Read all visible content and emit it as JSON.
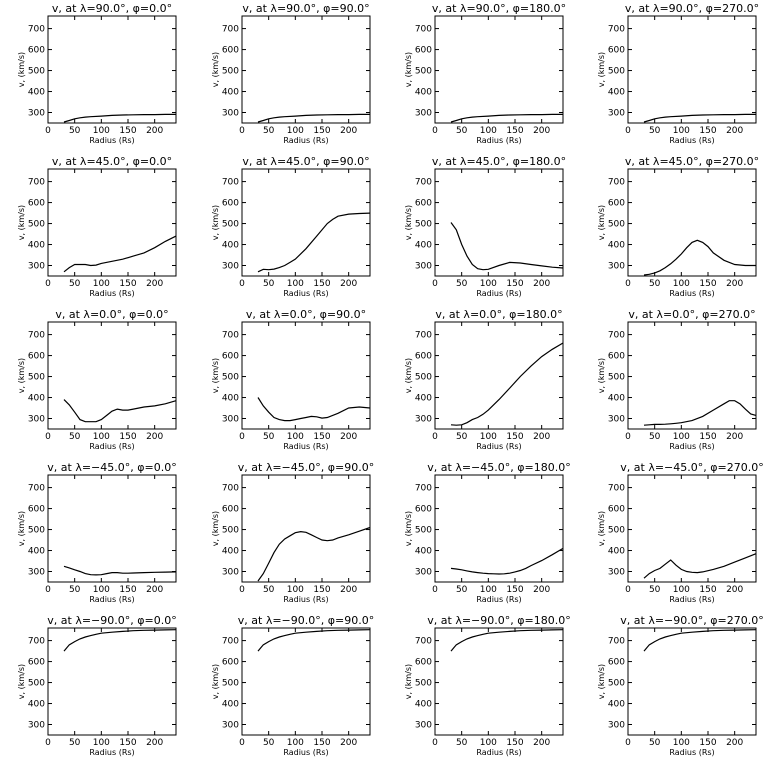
{
  "chart_data": {
    "type": "line",
    "layout": "5x4 grid of line plots",
    "xlabel": "Radius (Rs)",
    "ylabel": "v, (km/s)",
    "xlim": [
      0,
      240
    ],
    "ylim": [
      250,
      760
    ],
    "xticks": [
      0,
      50,
      100,
      150,
      200
    ],
    "yticks": [
      300,
      400,
      500,
      600,
      700
    ],
    "panels": [
      {
        "title": "v, at λ=90.0°, φ=0.0°",
        "x": [
          30,
          40,
          50,
          60,
          70,
          80,
          100,
          120,
          140,
          160,
          180,
          200,
          220,
          240
        ],
        "y": [
          255,
          262,
          270,
          275,
          278,
          280,
          283,
          286,
          288,
          289,
          290,
          290,
          291,
          291
        ]
      },
      {
        "title": "v, at λ=90.0°, φ=90.0°",
        "x": [
          30,
          40,
          50,
          60,
          70,
          80,
          100,
          120,
          140,
          160,
          180,
          200,
          220,
          240
        ],
        "y": [
          255,
          262,
          270,
          275,
          278,
          280,
          283,
          286,
          288,
          289,
          290,
          290,
          291,
          291
        ]
      },
      {
        "title": "v, at λ=90.0°, φ=180.0°",
        "x": [
          30,
          40,
          50,
          60,
          70,
          80,
          100,
          120,
          140,
          160,
          180,
          200,
          220,
          240
        ],
        "y": [
          255,
          262,
          270,
          275,
          278,
          280,
          283,
          286,
          288,
          289,
          290,
          290,
          291,
          291
        ]
      },
      {
        "title": "v, at λ=90.0°, φ=270.0°",
        "x": [
          30,
          40,
          50,
          60,
          70,
          80,
          100,
          120,
          140,
          160,
          180,
          200,
          220,
          240
        ],
        "y": [
          255,
          262,
          270,
          275,
          278,
          280,
          283,
          286,
          288,
          289,
          290,
          290,
          291,
          291
        ]
      },
      {
        "title": "v, at λ=45.0°, φ=0.0°",
        "x": [
          30,
          40,
          50,
          60,
          70,
          80,
          90,
          100,
          120,
          140,
          160,
          180,
          200,
          220,
          240
        ],
        "y": [
          270,
          290,
          305,
          305,
          305,
          300,
          302,
          310,
          320,
          330,
          345,
          360,
          385,
          415,
          440
        ]
      },
      {
        "title": "v, at λ=45.0°, φ=90.0°",
        "x": [
          30,
          40,
          50,
          60,
          70,
          80,
          90,
          100,
          120,
          140,
          160,
          170,
          180,
          200,
          220,
          240
        ],
        "y": [
          270,
          282,
          280,
          283,
          290,
          300,
          315,
          330,
          380,
          440,
          500,
          520,
          535,
          545,
          548,
          550
        ]
      },
      {
        "title": "v, at λ=45.0°, φ=180.0°",
        "x": [
          30,
          40,
          50,
          60,
          70,
          80,
          90,
          100,
          120,
          140,
          160,
          180,
          200,
          220,
          240
        ],
        "y": [
          505,
          470,
          400,
          345,
          305,
          285,
          280,
          282,
          300,
          315,
          312,
          305,
          298,
          292,
          288
        ]
      },
      {
        "title": "v, at λ=45.0°, φ=270.0°",
        "x": [
          30,
          40,
          50,
          60,
          70,
          80,
          90,
          100,
          110,
          120,
          130,
          140,
          150,
          160,
          180,
          200,
          220,
          240
        ],
        "y": [
          255,
          258,
          265,
          275,
          290,
          308,
          330,
          355,
          385,
          410,
          420,
          410,
          390,
          360,
          325,
          305,
          300,
          300
        ]
      },
      {
        "title": "v, at λ=0.0°, φ=0.0°",
        "x": [
          30,
          40,
          50,
          60,
          70,
          80,
          90,
          100,
          110,
          120,
          130,
          140,
          150,
          160,
          180,
          200,
          220,
          240
        ],
        "y": [
          390,
          365,
          330,
          295,
          285,
          285,
          285,
          295,
          315,
          335,
          345,
          340,
          340,
          345,
          355,
          360,
          370,
          385
        ]
      },
      {
        "title": "v, at λ=0.0°, φ=90.0°",
        "x": [
          30,
          40,
          50,
          60,
          70,
          80,
          90,
          100,
          110,
          120,
          130,
          140,
          150,
          160,
          180,
          200,
          220,
          240
        ],
        "y": [
          400,
          360,
          330,
          305,
          295,
          290,
          290,
          295,
          300,
          305,
          310,
          308,
          302,
          305,
          325,
          350,
          355,
          350
        ]
      },
      {
        "title": "v, at λ=0.0°, φ=180.0°",
        "x": [
          30,
          40,
          50,
          60,
          70,
          80,
          90,
          100,
          120,
          140,
          160,
          180,
          200,
          220,
          240
        ],
        "y": [
          270,
          268,
          270,
          280,
          295,
          305,
          320,
          340,
          390,
          445,
          500,
          550,
          595,
          630,
          660
        ]
      },
      {
        "title": "v, at λ=0.0°, φ=270.0°",
        "x": [
          30,
          40,
          50,
          60,
          70,
          80,
          90,
          100,
          120,
          140,
          160,
          180,
          190,
          200,
          210,
          220,
          230,
          240
        ],
        "y": [
          268,
          270,
          272,
          272,
          273,
          275,
          277,
          280,
          290,
          310,
          340,
          370,
          385,
          385,
          370,
          345,
          322,
          315
        ]
      },
      {
        "title": "v, at λ=−45.0°, φ=0.0°",
        "x": [
          30,
          40,
          50,
          60,
          70,
          80,
          90,
          100,
          110,
          120,
          130,
          140,
          150,
          160,
          180,
          200,
          220,
          240
        ],
        "y": [
          325,
          317,
          308,
          300,
          290,
          285,
          284,
          285,
          290,
          295,
          295,
          292,
          292,
          293,
          295,
          296,
          297,
          298
        ]
      },
      {
        "title": "v, at λ=−45.0°, φ=90.0°",
        "x": [
          30,
          40,
          50,
          60,
          70,
          80,
          90,
          100,
          110,
          120,
          130,
          140,
          150,
          160,
          170,
          180,
          200,
          220,
          240
        ],
        "y": [
          255,
          290,
          340,
          390,
          430,
          455,
          470,
          485,
          490,
          487,
          475,
          462,
          450,
          447,
          450,
          460,
          475,
          492,
          510
        ]
      },
      {
        "title": "v, at λ=−45.0°, φ=180.0°",
        "x": [
          30,
          40,
          50,
          60,
          70,
          80,
          90,
          100,
          110,
          120,
          130,
          140,
          150,
          160,
          170,
          180,
          200,
          220,
          240
        ],
        "y": [
          315,
          312,
          308,
          303,
          298,
          295,
          292,
          290,
          289,
          288,
          289,
          292,
          298,
          305,
          315,
          328,
          352,
          380,
          410
        ]
      },
      {
        "title": "v, at λ=−45.0°, φ=270.0°",
        "x": [
          30,
          40,
          50,
          60,
          70,
          80,
          90,
          100,
          110,
          120,
          130,
          140,
          160,
          180,
          200,
          220,
          240
        ],
        "y": [
          268,
          290,
          305,
          315,
          335,
          355,
          330,
          310,
          300,
          296,
          295,
          298,
          310,
          325,
          345,
          365,
          385
        ]
      },
      {
        "title": "v, at λ=−90.0°, φ=0.0°",
        "x": [
          30,
          35,
          40,
          50,
          60,
          70,
          80,
          90,
          100,
          120,
          140,
          160,
          180,
          200,
          220,
          240
        ],
        "y": [
          650,
          665,
          680,
          695,
          708,
          717,
          724,
          730,
          735,
          740,
          744,
          747,
          749,
          750,
          751,
          752
        ]
      },
      {
        "title": "v, at λ=−90.0°, φ=90.0°",
        "x": [
          30,
          35,
          40,
          50,
          60,
          70,
          80,
          90,
          100,
          120,
          140,
          160,
          180,
          200,
          220,
          240
        ],
        "y": [
          650,
          665,
          680,
          695,
          708,
          717,
          724,
          730,
          735,
          740,
          744,
          747,
          749,
          750,
          751,
          752
        ]
      },
      {
        "title": "v, at λ=−90.0°, φ=180.0°",
        "x": [
          30,
          35,
          40,
          50,
          60,
          70,
          80,
          90,
          100,
          120,
          140,
          160,
          180,
          200,
          220,
          240
        ],
        "y": [
          650,
          665,
          680,
          695,
          708,
          717,
          724,
          730,
          735,
          740,
          744,
          747,
          749,
          750,
          751,
          752
        ]
      },
      {
        "title": "v, at λ=−90.0°, φ=270.0°",
        "x": [
          30,
          35,
          40,
          50,
          60,
          70,
          80,
          90,
          100,
          120,
          140,
          160,
          180,
          200,
          220,
          240
        ],
        "y": [
          650,
          665,
          680,
          695,
          708,
          717,
          724,
          730,
          735,
          740,
          744,
          747,
          749,
          750,
          751,
          752
        ]
      }
    ]
  }
}
